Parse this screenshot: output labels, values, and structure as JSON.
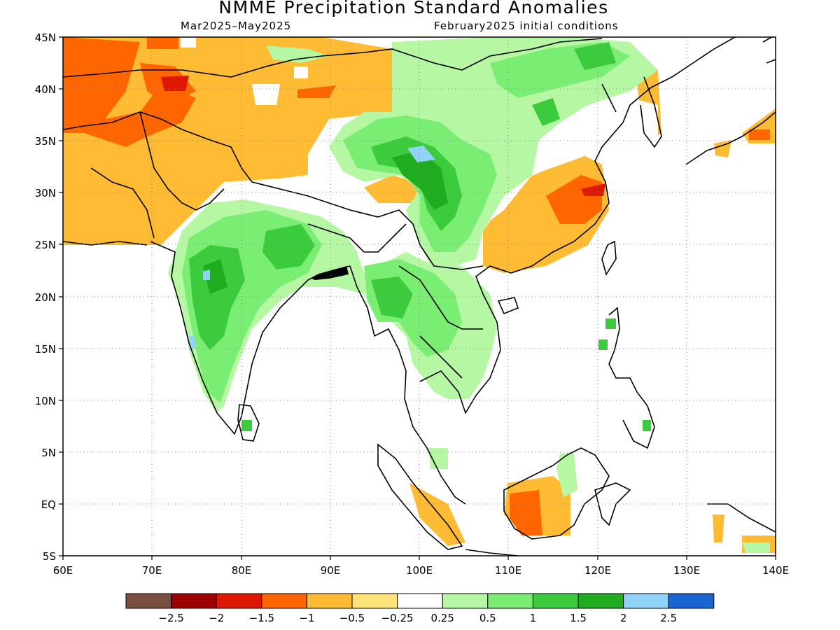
{
  "title": "NMME Precipitation Standard Anomalies",
  "subtitle_left": "Mar2025–May2025",
  "subtitle_right": "February2025 initial conditions",
  "map": {
    "lon_range": [
      60,
      140
    ],
    "lat_range": [
      -5,
      45
    ],
    "gridlines": "dotted"
  },
  "x_ticks": [
    "60E",
    "70E",
    "80E",
    "90E",
    "100E",
    "110E",
    "120E",
    "130E",
    "140E"
  ],
  "y_ticks": [
    "45N",
    "40N",
    "35N",
    "30N",
    "25N",
    "20N",
    "15N",
    "10N",
    "5N",
    "EQ",
    "5S"
  ],
  "legend": {
    "colors": [
      "#7a4f41",
      "#9e0000",
      "#dd1700",
      "#ff6600",
      "#ffbb33",
      "#ffe37a",
      "#ffffff",
      "#b5f7a3",
      "#7aed73",
      "#3ccb3c",
      "#1fad1f",
      "#91d2f9",
      "#1966d1"
    ],
    "labels": [
      "−2.5",
      "−2",
      "−1.5",
      "−1",
      "−0.5",
      "−0.25",
      "0.25",
      "0.5",
      "1",
      "1.5",
      "2",
      "2.5"
    ]
  }
}
